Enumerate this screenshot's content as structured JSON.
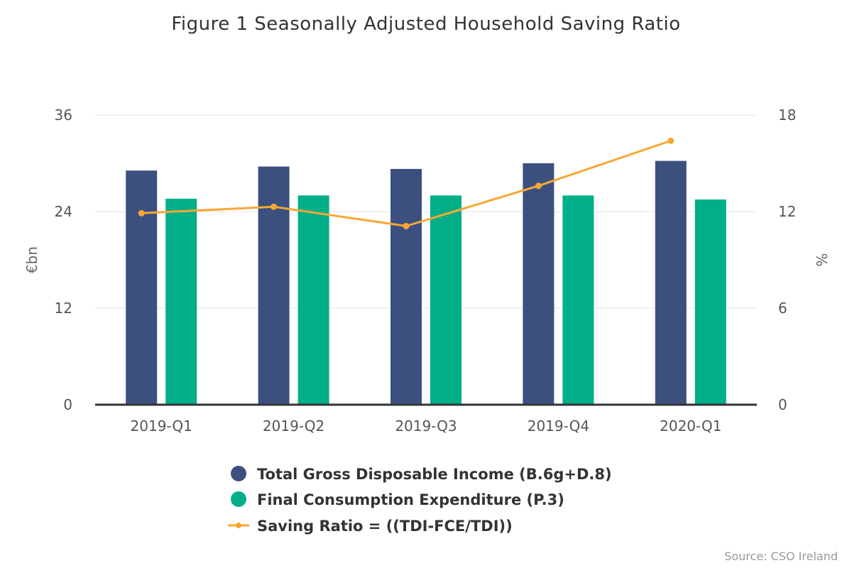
{
  "chart_data": {
    "type": "bar",
    "title": "Figure 1 Seasonally Adjusted Household Saving Ratio",
    "categories": [
      "2019-Q1",
      "2019-Q2",
      "2019-Q3",
      "2019-Q4",
      "2020-Q1"
    ],
    "left_axis": {
      "label": "€bn",
      "ylim": [
        0,
        36
      ],
      "ticks": [
        "0",
        "12",
        "24",
        "36"
      ]
    },
    "right_axis": {
      "label": "%",
      "ylim": [
        0,
        18
      ],
      "ticks": [
        "0",
        "6",
        "12",
        "18"
      ]
    },
    "series": [
      {
        "name": "Total Gross Disposable Income (B.6g+D.8)",
        "type": "bar",
        "axis": "left",
        "color": "#3c5080",
        "values": [
          29.1,
          29.6,
          29.3,
          30.0,
          30.3
        ]
      },
      {
        "name": "Final Consumption Expenditure (P.3)",
        "type": "bar",
        "axis": "left",
        "color": "#00ae87",
        "values": [
          25.6,
          26.0,
          26.0,
          26.0,
          25.5
        ]
      },
      {
        "name": "Saving Ratio = ((TDI-FCE/TDI))",
        "type": "line",
        "axis": "right",
        "color": "#f7a833",
        "values": [
          11.9,
          12.3,
          11.1,
          13.6,
          16.4
        ]
      }
    ],
    "grid": true,
    "legend_position": "bottom-center"
  },
  "source": "Source: CSO Ireland"
}
